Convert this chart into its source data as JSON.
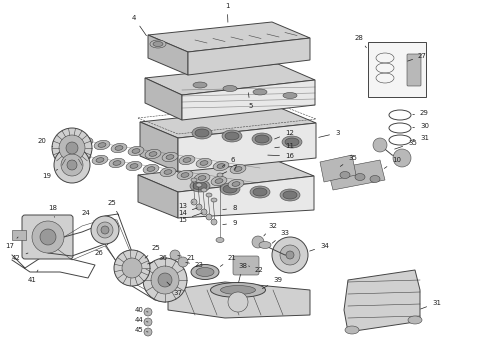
{
  "bg": "#ffffff",
  "fg": "#444444",
  "fg2": "#222222",
  "gray1": "#e8e8e8",
  "gray2": "#d0d0d0",
  "gray3": "#b8b8b8",
  "gray4": "#999999",
  "gray5": "#777777",
  "lw_thin": 0.4,
  "lw_med": 0.7,
  "lw_thick": 1.1,
  "label_fs": 5.0,
  "fig_w": 4.9,
  "fig_h": 3.6,
  "dpi": 100
}
